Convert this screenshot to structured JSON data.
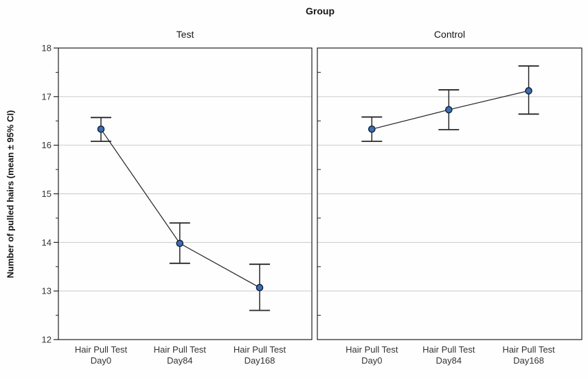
{
  "chart_data": {
    "type": "line",
    "title": "Group",
    "ylabel": "Number of pulled hairs (mean ± 95% CI)",
    "ylim": [
      12,
      18
    ],
    "yticks": [
      12,
      13,
      14,
      15,
      16,
      17,
      18
    ],
    "minor_tick_step": 0.5,
    "grid": "horizontal-at-integers",
    "legend": "none",
    "categories": [
      [
        "Hair Pull Test",
        "Day0"
      ],
      [
        "Hair Pull Test",
        "Day84"
      ],
      [
        "Hair Pull Test",
        "Day168"
      ]
    ],
    "panels": [
      {
        "label": "Test",
        "points": [
          {
            "mean": 16.33,
            "ci_low": 16.08,
            "ci_high": 16.57
          },
          {
            "mean": 13.98,
            "ci_low": 13.57,
            "ci_high": 14.4
          },
          {
            "mean": 13.07,
            "ci_low": 12.6,
            "ci_high": 13.55
          }
        ]
      },
      {
        "label": "Control",
        "points": [
          {
            "mean": 16.33,
            "ci_low": 16.08,
            "ci_high": 16.58
          },
          {
            "mean": 16.73,
            "ci_low": 16.32,
            "ci_high": 17.14
          },
          {
            "mean": 17.12,
            "ci_low": 16.64,
            "ci_high": 17.63
          }
        ]
      }
    ],
    "colors": {
      "marker_fill": "#3e6db0",
      "marker_edge": "#0b1f3a",
      "series_line": "#1f1f1f",
      "error_bar": "#262626",
      "panel_border": "#1f1f1f",
      "gridline": "#c9c9c9",
      "tick_label": "#333333"
    }
  }
}
